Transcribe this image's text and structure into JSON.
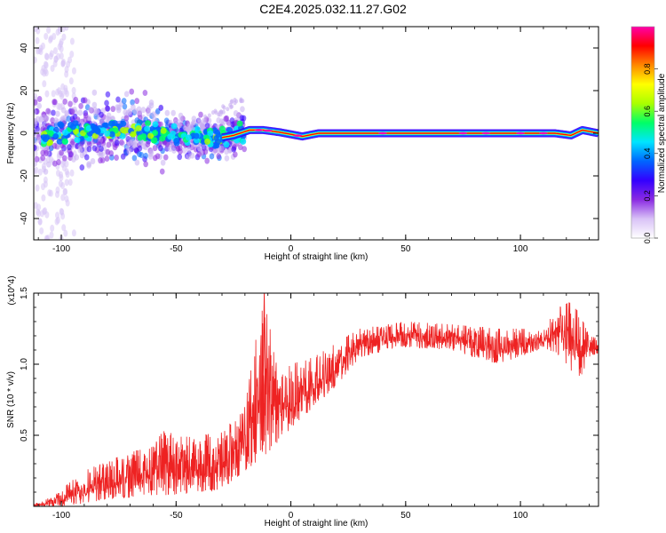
{
  "title": "C2E4.2025.032.11.27.G02",
  "chart_data": [
    {
      "type": "heatmap",
      "xlabel": "Height of straight line (km)",
      "ylabel": "Frequency (Hz)",
      "xlim": [
        -112,
        134
      ],
      "ylim": [
        -50,
        50
      ],
      "x_ticks": [
        -100,
        -50,
        0,
        50,
        100
      ],
      "y_ticks": [
        -40,
        -20,
        0,
        20,
        40
      ],
      "colorbar": {
        "label": "Normalized spectral amplitude",
        "range": [
          0.0,
          1.0
        ],
        "ticks": [
          "0.0",
          "0.2",
          "0.4",
          "0.6",
          "0.8"
        ],
        "colormap": [
          "#ffffff",
          "#d9c2f7",
          "#8a2be2",
          "#3300ff",
          "#0066ff",
          "#00e5ff",
          "#00ff66",
          "#aaff00",
          "#ffff00",
          "#ff8800",
          "#ff0000",
          "#ff00aa"
        ]
      },
      "band_center_hz": [
        {
          "x": -110,
          "f": -1.0
        },
        {
          "x": -90,
          "f": 0.5
        },
        {
          "x": -70,
          "f": 1.5
        },
        {
          "x": -50,
          "f": -1.0
        },
        {
          "x": -30,
          "f": -2.0
        },
        {
          "x": -25,
          "f": -1.0
        },
        {
          "x": -18,
          "f": 1.5
        },
        {
          "x": -12,
          "f": 1.5
        },
        {
          "x": -5,
          "f": 0.5
        },
        {
          "x": 5,
          "f": -1.5
        },
        {
          "x": 12,
          "f": 0.0
        },
        {
          "x": 20,
          "f": 0.0
        },
        {
          "x": 115,
          "f": 0.0
        },
        {
          "x": 122,
          "f": -1.0
        },
        {
          "x": 127,
          "f": 1.5
        },
        {
          "x": 134,
          "f": 0.0
        }
      ]
    },
    {
      "type": "line",
      "xlabel": "Height of straight line (km)",
      "ylabel": "SNR (10 * v/v)",
      "y_multiplier": "(x10^4)",
      "xlim": [
        -112,
        134
      ],
      "ylim": [
        0.0,
        1.5
      ],
      "x_ticks": [
        -100,
        -50,
        0,
        50,
        100
      ],
      "y_ticks": [
        0.5,
        1.0,
        1.5
      ],
      "y_tick_labels": [
        "0.5",
        "1.0",
        "1.5"
      ],
      "series": [
        {
          "color": "#ee2222",
          "envelope": [
            {
              "x": -112,
              "low": 0.0,
              "high": 0.02
            },
            {
              "x": -105,
              "low": 0.0,
              "high": 0.06
            },
            {
              "x": -100,
              "low": 0.0,
              "high": 0.12
            },
            {
              "x": -90,
              "low": 0.02,
              "high": 0.25
            },
            {
              "x": -80,
              "low": 0.05,
              "high": 0.32
            },
            {
              "x": -70,
              "low": 0.06,
              "high": 0.38
            },
            {
              "x": -60,
              "low": 0.08,
              "high": 0.42
            },
            {
              "x": -55,
              "low": 0.08,
              "high": 0.55
            },
            {
              "x": -50,
              "low": 0.08,
              "high": 0.5
            },
            {
              "x": -40,
              "low": 0.1,
              "high": 0.5
            },
            {
              "x": -30,
              "low": 0.12,
              "high": 0.52
            },
            {
              "x": -20,
              "low": 0.25,
              "high": 0.7
            },
            {
              "x": -12,
              "low": 0.35,
              "high": 1.5
            },
            {
              "x": -5,
              "low": 0.45,
              "high": 0.9
            },
            {
              "x": 0,
              "low": 0.55,
              "high": 1.0
            },
            {
              "x": 10,
              "low": 0.7,
              "high": 1.05
            },
            {
              "x": 20,
              "low": 0.85,
              "high": 1.15
            },
            {
              "x": 30,
              "low": 1.05,
              "high": 1.25
            },
            {
              "x": 50,
              "low": 1.12,
              "high": 1.3
            },
            {
              "x": 70,
              "low": 1.1,
              "high": 1.28
            },
            {
              "x": 90,
              "low": 1.0,
              "high": 1.25
            },
            {
              "x": 100,
              "low": 1.05,
              "high": 1.25
            },
            {
              "x": 110,
              "low": 1.12,
              "high": 1.24
            },
            {
              "x": 118,
              "low": 1.05,
              "high": 1.45
            },
            {
              "x": 122,
              "low": 0.95,
              "high": 1.43
            },
            {
              "x": 126,
              "low": 0.9,
              "high": 1.35
            },
            {
              "x": 130,
              "low": 1.05,
              "high": 1.2
            },
            {
              "x": 134,
              "low": 1.08,
              "high": 1.18
            }
          ]
        }
      ]
    }
  ]
}
